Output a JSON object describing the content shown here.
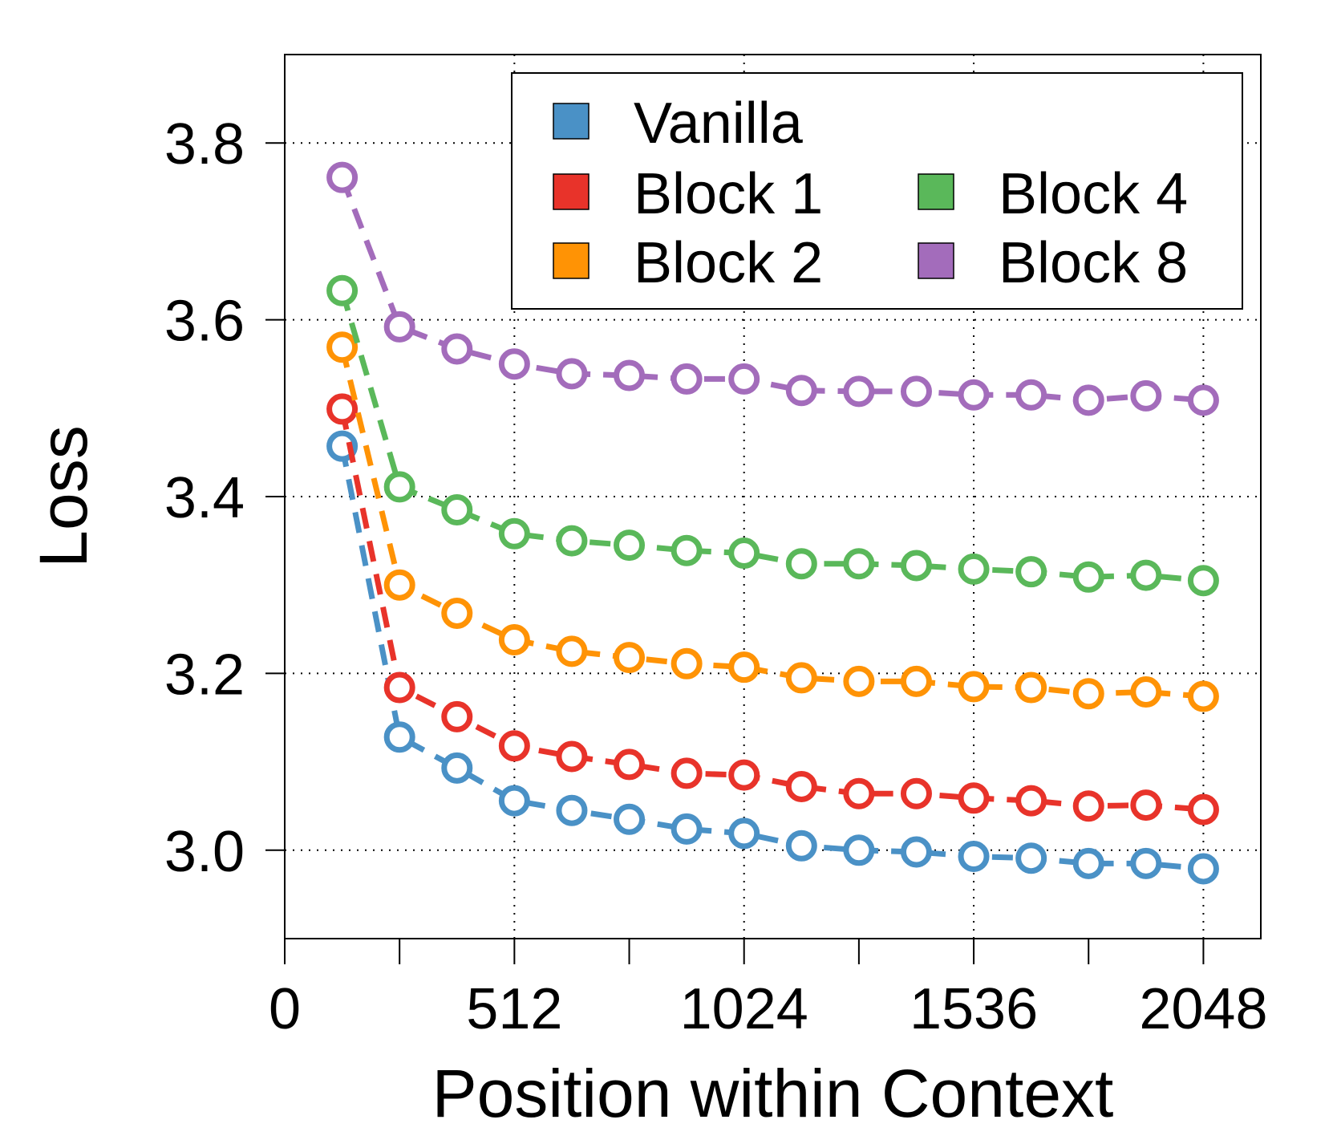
{
  "chart_data": {
    "type": "line",
    "xlabel": "Position within Context",
    "ylabel": "Loss",
    "xlim": [
      0,
      2176
    ],
    "ylim": [
      2.9,
      3.9
    ],
    "xticks": [
      0,
      512,
      1024,
      1536,
      2048
    ],
    "xticks_minor": [
      256,
      768,
      1280,
      1792
    ],
    "yticks": [
      3.0,
      3.2,
      3.4,
      3.6,
      3.8
    ],
    "ytick_labels": [
      "3.0",
      "3.2",
      "3.4",
      "3.6",
      "3.8"
    ],
    "xtick_labels": [
      "0",
      "512",
      "1024",
      "1536",
      "2048"
    ],
    "grid": true,
    "legend_position": "top-right",
    "x": [
      128,
      256,
      384,
      512,
      640,
      768,
      896,
      1024,
      1152,
      1280,
      1408,
      1536,
      1664,
      1792,
      1920,
      2048
    ],
    "series": [
      {
        "name": "Vanilla",
        "color": "#4a91c6",
        "values": [
          3.457,
          3.128,
          3.093,
          3.056,
          3.045,
          3.035,
          3.024,
          3.019,
          3.005,
          3.0,
          2.998,
          2.993,
          2.991,
          2.985,
          2.985,
          2.979
        ]
      },
      {
        "name": "Block 1",
        "color": "#e8332a",
        "values": [
          3.499,
          3.184,
          3.151,
          3.118,
          3.106,
          3.097,
          3.087,
          3.085,
          3.072,
          3.064,
          3.064,
          3.059,
          3.056,
          3.05,
          3.051,
          3.046
        ]
      },
      {
        "name": "Block 2",
        "color": "#ff9305",
        "values": [
          3.569,
          3.3,
          3.268,
          3.238,
          3.225,
          3.218,
          3.211,
          3.207,
          3.195,
          3.191,
          3.191,
          3.185,
          3.184,
          3.177,
          3.179,
          3.174
        ]
      },
      {
        "name": "Block 4",
        "color": "#5ab85a",
        "values": [
          3.633,
          3.411,
          3.385,
          3.358,
          3.35,
          3.345,
          3.339,
          3.336,
          3.324,
          3.324,
          3.322,
          3.318,
          3.315,
          3.309,
          3.311,
          3.305
        ]
      },
      {
        "name": "Block 8",
        "color": "#a36cbb",
        "values": [
          3.761,
          3.592,
          3.567,
          3.55,
          3.539,
          3.537,
          3.533,
          3.533,
          3.52,
          3.519,
          3.519,
          3.515,
          3.515,
          3.509,
          3.514,
          3.509
        ]
      }
    ],
    "legend_entries": [
      "Vanilla",
      "Block 1",
      "Block 2",
      "Block 4",
      "Block 8"
    ]
  }
}
